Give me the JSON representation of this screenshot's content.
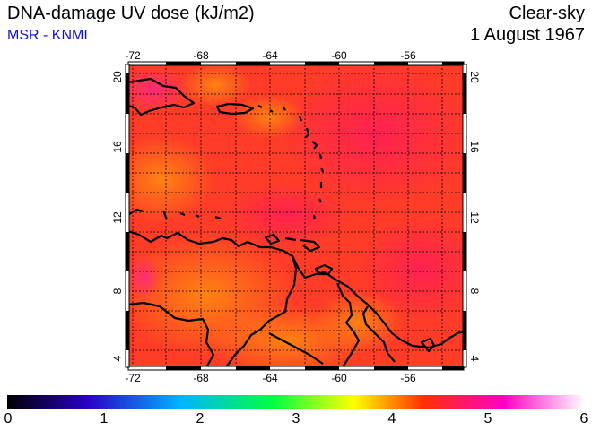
{
  "header": {
    "title": "DNA-damage UV dose (kJ/m2)",
    "subtitle": "MSR - KNMI",
    "mode": "Clear-sky",
    "date": "1 August 1967"
  },
  "map": {
    "region": "Caribbean Sea / Lesser Antilles / northern South America",
    "lon_range": [
      -73,
      -53
    ],
    "lat_range": [
      3.5,
      20.5
    ],
    "lon_ticks": [
      "-72",
      "-68",
      "-64",
      "-60",
      "-56"
    ],
    "lat_ticks": [
      "4",
      "8",
      "12",
      "16",
      "20"
    ],
    "field_colors": {
      "dominant": "#ff3c28",
      "high": "#ff1a46",
      "low": "#ff7a12",
      "max": "#ff2a7a"
    },
    "grid": "dotted"
  },
  "colorbar": {
    "min": 0,
    "max": 6,
    "labels": [
      "0",
      "1",
      "2",
      "3",
      "4",
      "5",
      "6"
    ],
    "stops": [
      "#000000",
      "#2a00c8",
      "#00b4ff",
      "#00ff40",
      "#ffff00",
      "#ff3000",
      "#ff00c8",
      "#ffffff"
    ]
  }
}
